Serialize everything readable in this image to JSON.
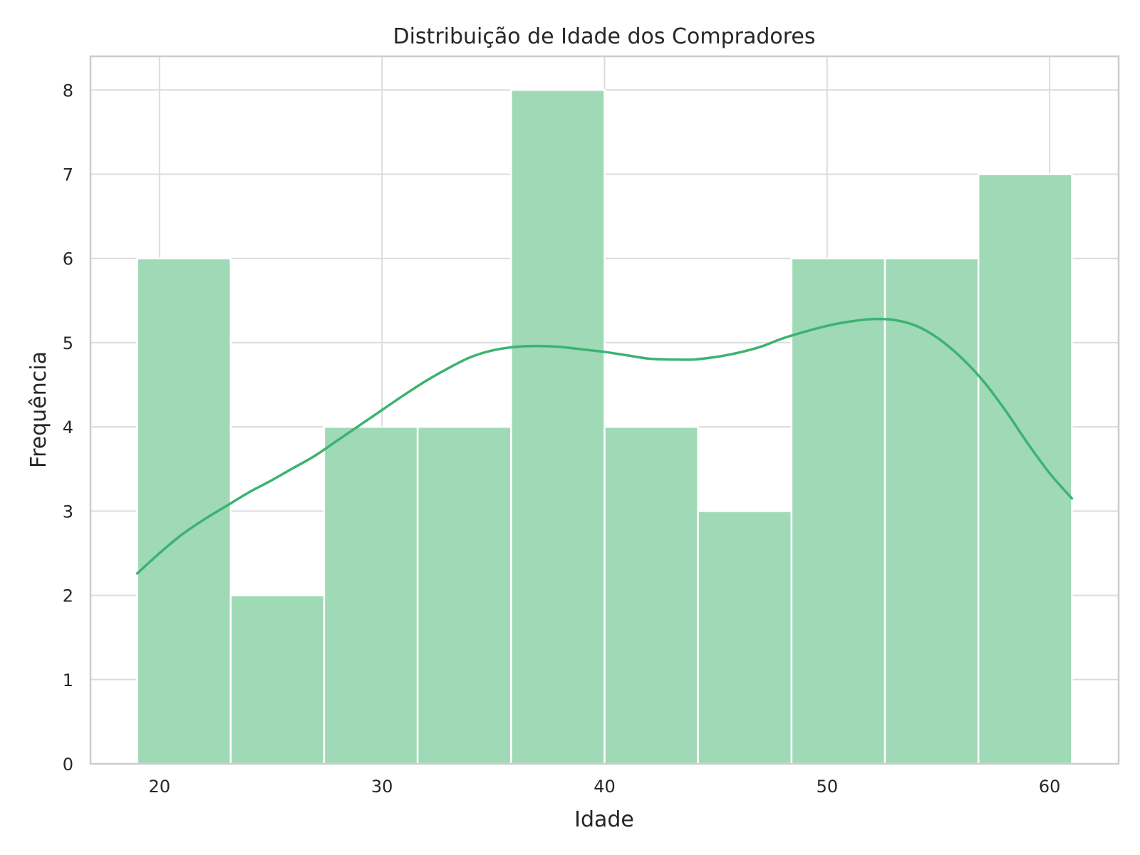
{
  "chart_data": {
    "type": "bar",
    "subtype": "histogram",
    "title": "Distribuição de Idade dos Compradores",
    "xlabel": "Idade",
    "ylabel": "Frequência",
    "xlim": [
      16.9,
      63.1
    ],
    "ylim": [
      0,
      8.4
    ],
    "xticks": [
      20,
      30,
      40,
      50,
      60
    ],
    "yticks": [
      0,
      1,
      2,
      3,
      4,
      5,
      6,
      7,
      8
    ],
    "grid": true,
    "bins": [
      {
        "start": 19.0,
        "end": 23.2,
        "count": 6
      },
      {
        "start": 23.2,
        "end": 27.4,
        "count": 2
      },
      {
        "start": 27.4,
        "end": 31.6,
        "count": 4
      },
      {
        "start": 31.6,
        "end": 35.8,
        "count": 4
      },
      {
        "start": 35.8,
        "end": 40.0,
        "count": 8
      },
      {
        "start": 40.0,
        "end": 44.2,
        "count": 4
      },
      {
        "start": 44.2,
        "end": 48.4,
        "count": 3
      },
      {
        "start": 48.4,
        "end": 52.6,
        "count": 6
      },
      {
        "start": 52.6,
        "end": 56.8,
        "count": 6
      },
      {
        "start": 56.8,
        "end": 61.0,
        "count": 7
      }
    ],
    "kde": {
      "x": [
        19,
        20,
        21,
        22,
        23,
        24,
        25,
        26,
        27,
        28,
        29,
        30,
        31,
        32,
        33,
        34,
        35,
        36,
        37,
        38,
        39,
        40,
        41,
        42,
        43,
        44,
        45,
        46,
        47,
        48,
        49,
        50,
        51,
        52,
        53,
        54,
        55,
        56,
        57,
        58,
        59,
        60,
        61
      ],
      "y": [
        2.26,
        2.5,
        2.72,
        2.9,
        3.06,
        3.22,
        3.36,
        3.51,
        3.66,
        3.84,
        4.02,
        4.2,
        4.38,
        4.55,
        4.7,
        4.83,
        4.91,
        4.95,
        4.96,
        4.95,
        4.92,
        4.89,
        4.85,
        4.81,
        4.8,
        4.8,
        4.83,
        4.88,
        4.95,
        5.05,
        5.13,
        5.2,
        5.25,
        5.28,
        5.27,
        5.2,
        5.05,
        4.83,
        4.55,
        4.2,
        3.81,
        3.45,
        3.15
      ]
    },
    "colors": {
      "bar_fill": "#9fd9b6",
      "kde_line": "#3cb371"
    }
  }
}
